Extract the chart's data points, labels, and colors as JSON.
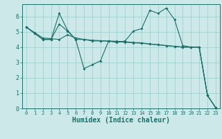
{
  "title": "",
  "xlabel": "Humidex (Indice chaleur)",
  "bg_color": "#cce8e8",
  "line_color": "#1a6e6a",
  "grid_color": "#99cccc",
  "xlim": [
    -0.5,
    23.5
  ],
  "ylim": [
    0,
    6.8
  ],
  "line1_x": [
    0,
    1,
    2,
    3,
    4,
    5,
    6,
    7,
    8,
    9,
    10,
    11,
    12,
    13,
    14,
    15,
    16,
    17,
    18,
    19,
    20,
    21,
    22,
    23
  ],
  "line1_y": [
    5.3,
    4.9,
    4.5,
    4.5,
    6.2,
    5.1,
    4.5,
    2.6,
    2.85,
    3.1,
    4.4,
    4.3,
    4.4,
    5.05,
    5.2,
    6.4,
    6.2,
    6.55,
    5.8,
    4.1,
    4.0,
    4.0,
    0.85,
    0.05
  ],
  "line2_x": [
    0,
    1,
    2,
    3,
    4,
    5,
    6,
    7,
    8,
    9,
    10,
    11,
    12,
    13,
    14,
    15,
    16,
    17,
    18,
    19,
    20,
    21,
    22,
    23
  ],
  "line2_y": [
    5.3,
    4.9,
    4.5,
    4.5,
    5.5,
    5.05,
    4.5,
    4.5,
    4.4,
    4.4,
    4.4,
    4.38,
    4.35,
    4.3,
    4.28,
    4.2,
    4.15,
    4.1,
    4.05,
    4.0,
    4.0,
    4.0,
    0.85,
    0.05
  ],
  "line3_x": [
    0,
    1,
    2,
    3,
    4,
    5,
    6,
    7,
    8,
    9,
    10,
    11,
    12,
    13,
    14,
    15,
    16,
    17,
    18,
    19,
    20,
    21,
    22,
    23
  ],
  "line3_y": [
    5.3,
    4.95,
    4.6,
    4.55,
    4.5,
    4.8,
    4.6,
    4.5,
    4.45,
    4.42,
    4.38,
    4.35,
    4.32,
    4.28,
    4.25,
    4.2,
    4.15,
    4.1,
    4.05,
    4.0,
    4.0,
    4.0,
    0.85,
    0.05
  ],
  "xticks": [
    0,
    1,
    2,
    3,
    4,
    5,
    6,
    7,
    8,
    9,
    10,
    11,
    12,
    13,
    14,
    15,
    16,
    17,
    18,
    19,
    20,
    21,
    22,
    23
  ],
  "yticks": [
    0,
    1,
    2,
    3,
    4,
    5,
    6
  ],
  "xtick_fontsize": 5.0,
  "ytick_fontsize": 6.0,
  "label_fontsize": 7.0,
  "marker_size": 2.0,
  "linewidth": 0.8
}
